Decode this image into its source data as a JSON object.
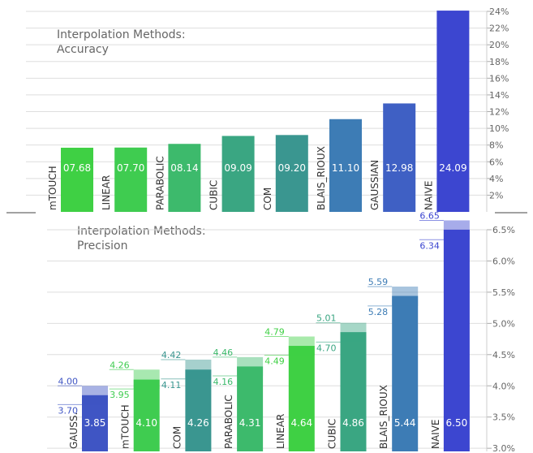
{
  "chart_data": [
    {
      "type": "bar",
      "title": "Interpolation Methods:",
      "subtitle": "Accuracy",
      "categories": [
        "mTOUCH",
        "LINEAR",
        "PARABOLIC",
        "CUBIC",
        "COM",
        "BLAIS_RIOUX",
        "GAUSSIAN",
        "NAIVE"
      ],
      "values": [
        7.68,
        7.7,
        8.14,
        9.09,
        9.2,
        11.1,
        12.98,
        24.09
      ],
      "value_labels": [
        "07.68",
        "07.70",
        "08.14",
        "09.09",
        "09.20",
        "11.10",
        "12.98",
        "24.09"
      ],
      "colors": [
        "#3fd044",
        "#3fcc50",
        "#3dba6c",
        "#3aa682",
        "#3a9690",
        "#3d7cb5",
        "#3f60c4",
        "#3c46d0"
      ],
      "ylim": [
        0,
        24
      ],
      "yticks": [
        2,
        4,
        6,
        8,
        10,
        12,
        14,
        16,
        18,
        20,
        22,
        24
      ],
      "ytick_labels": [
        "2%",
        "4%",
        "6%",
        "8%",
        "10%",
        "12%",
        "14%",
        "16%",
        "18%",
        "20%",
        "22%",
        "24%"
      ],
      "grid": true
    },
    {
      "type": "bar",
      "title": "Interpolation Methods:",
      "subtitle": "Precision",
      "categories": [
        "GAUSS.",
        "mTOUCH",
        "COM",
        "PARABOLIC",
        "LINEAR",
        "CUBIC",
        "BLAIS_RIOUX",
        "NAIVE"
      ],
      "values": [
        3.85,
        4.1,
        4.26,
        4.31,
        4.64,
        4.86,
        5.44,
        6.5
      ],
      "value_labels": [
        "3.85",
        "4.10",
        "4.26",
        "4.31",
        "4.64",
        "4.86",
        "5.44",
        "6.50"
      ],
      "range_high": [
        4.0,
        4.26,
        4.42,
        4.46,
        4.79,
        5.01,
        5.59,
        6.65
      ],
      "range_low": [
        3.7,
        3.95,
        4.11,
        4.16,
        4.49,
        4.7,
        5.28,
        6.34
      ],
      "range_high_labels": [
        "4.00",
        "4.26",
        "4.42",
        "4.46",
        "4.79",
        "5.01",
        "5.59",
        "6.65"
      ],
      "range_low_labels": [
        "3.70",
        "3.95",
        "4.11",
        "4.16",
        "4.49",
        "4.70",
        "5.28",
        "6.34"
      ],
      "colors": [
        "#3f55c4",
        "#3fcc50",
        "#3a9690",
        "#3dba6c",
        "#3fd044",
        "#3aa682",
        "#3d7cb5",
        "#3c46d0"
      ],
      "ylim": [
        2.95,
        6.5
      ],
      "yticks": [
        3.0,
        3.5,
        4.0,
        4.5,
        5.0,
        5.5,
        6.0,
        6.5
      ],
      "ytick_labels": [
        "3.0%",
        "3.5%",
        "4.0%",
        "4.5%",
        "5.0%",
        "5.5%",
        "6.0%",
        "6.5%"
      ],
      "grid": true
    }
  ]
}
